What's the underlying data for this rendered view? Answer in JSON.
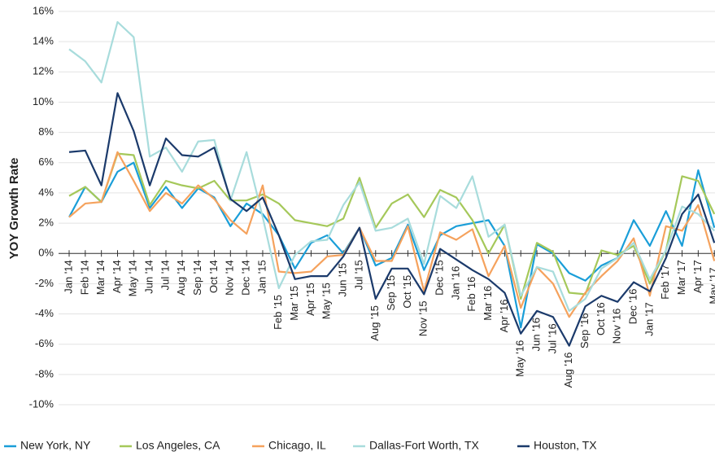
{
  "chart_data": {
    "type": "line",
    "y_label": "YOY Growth Rate",
    "categories": [
      "Jan '14",
      "Feb '14",
      "Mar '14",
      "Apr '14",
      "May '14",
      "Jun '14",
      "Jul '14",
      "Aug '14",
      "Sep '14",
      "Oct '14",
      "Nov '14",
      "Dec '14",
      "Jan '15",
      "Feb '15",
      "Mar '15",
      "Apr '15",
      "May '15",
      "Jun '15",
      "Jul '15",
      "Aug '15",
      "Sep '15",
      "Oct '15",
      "Nov '15",
      "Dec '15",
      "Jan '16",
      "Feb '16",
      "Mar '16",
      "Apr '16",
      "May '16",
      "Jun '16",
      "Jul '16",
      "Aug '16",
      "Sep '16",
      "Oct '16",
      "Nov '16",
      "Dec '16",
      "Jan '17",
      "Feb '17",
      "Mar '17",
      "Apr '17",
      "May '17"
    ],
    "series": [
      {
        "name": "New York, NY",
        "color": "#1a9ed8",
        "values": [
          2.4,
          4.4,
          3.4,
          5.4,
          6.0,
          3.0,
          4.4,
          3.0,
          4.3,
          3.7,
          1.8,
          3.3,
          2.6,
          1.2,
          -1.0,
          0.7,
          1.2,
          0.0,
          1.7,
          -0.8,
          -0.3,
          1.9,
          -1.1,
          1.2,
          1.8,
          2.0,
          2.2,
          0.5,
          -4.9,
          0.6,
          0.0,
          -1.3,
          -1.8,
          -0.8,
          -0.3,
          2.2,
          0.5,
          2.8,
          0.5,
          5.5,
          1.7
        ]
      },
      {
        "name": "Los Angeles, CA",
        "color": "#a5c85a",
        "values": [
          3.8,
          4.4,
          3.4,
          6.6,
          6.5,
          3.2,
          4.8,
          4.5,
          4.3,
          4.8,
          3.5,
          3.5,
          3.9,
          3.3,
          2.2,
          2.0,
          1.8,
          2.3,
          5.0,
          1.7,
          3.3,
          3.9,
          2.4,
          4.2,
          3.7,
          2.2,
          0.0,
          1.9,
          -3.0,
          0.7,
          0.1,
          -2.6,
          -2.7,
          0.2,
          -0.1,
          0.5,
          -2.0,
          0.2,
          5.1,
          4.8,
          2.6
        ]
      },
      {
        "name": "Chicago, IL",
        "color": "#f5a25d",
        "values": [
          2.4,
          3.3,
          3.4,
          6.7,
          4.8,
          2.8,
          4.0,
          3.3,
          4.5,
          3.6,
          2.2,
          1.3,
          4.5,
          -1.2,
          -1.3,
          -1.2,
          -0.2,
          -0.1,
          1.7,
          -0.5,
          -0.5,
          1.8,
          -2.5,
          1.4,
          0.9,
          1.6,
          -1.5,
          0.5,
          -3.6,
          -0.9,
          -2.0,
          -4.2,
          -2.6,
          -1.5,
          -0.5,
          1.0,
          -2.8,
          1.8,
          1.5,
          3.2,
          -0.5
        ]
      },
      {
        "name": "Dallas-Fort Worth, TX",
        "color": "#a8dcdc",
        "values": [
          13.5,
          12.7,
          11.3,
          15.3,
          14.3,
          6.4,
          7.0,
          5.4,
          7.4,
          7.5,
          3.5,
          6.7,
          2.4,
          -2.3,
          -0.1,
          0.8,
          0.9,
          3.2,
          4.7,
          1.5,
          1.7,
          2.3,
          -0.7,
          3.8,
          3.0,
          5.1,
          1.1,
          1.9,
          -2.8,
          -0.9,
          -1.2,
          -3.8,
          -3.0,
          -1.0,
          -0.3,
          0.7,
          -1.7,
          0.2,
          3.1,
          2.6,
          1.5
        ]
      },
      {
        "name": "Houston, TX",
        "color": "#1b3a6b",
        "values": [
          6.7,
          6.8,
          4.5,
          10.6,
          8.1,
          4.5,
          7.6,
          6.5,
          6.4,
          7.0,
          3.6,
          2.8,
          3.7,
          1.2,
          -1.7,
          -1.5,
          -1.5,
          -0.2,
          1.7,
          -3.0,
          -1.0,
          -1.0,
          -2.7,
          0.3,
          -0.4,
          -1.1,
          -1.7,
          -2.6,
          -5.3,
          -3.8,
          -4.2,
          -6.1,
          -3.5,
          -2.8,
          -3.2,
          -1.9,
          -2.5,
          -0.3,
          2.6,
          3.9,
          0.7
        ]
      }
    ],
    "ylim": [
      -10,
      16
    ],
    "yticks": [
      {
        "value": -10,
        "label": "-10%"
      },
      {
        "value": -8,
        "label": "-8%"
      },
      {
        "value": -6,
        "label": "-6%"
      },
      {
        "value": -4,
        "label": "-4%"
      },
      {
        "value": -2,
        "label": "-2%"
      },
      {
        "value": 0,
        "label": "0%"
      },
      {
        "value": 2,
        "label": "2%"
      },
      {
        "value": 4,
        "label": "4%"
      },
      {
        "value": 6,
        "label": "6%"
      },
      {
        "value": 8,
        "label": "8%"
      },
      {
        "value": 10,
        "label": "10%"
      },
      {
        "value": 12,
        "label": "12%"
      },
      {
        "value": 14,
        "label": "14%"
      },
      {
        "value": 16,
        "label": "16%"
      }
    ],
    "grid": true
  }
}
